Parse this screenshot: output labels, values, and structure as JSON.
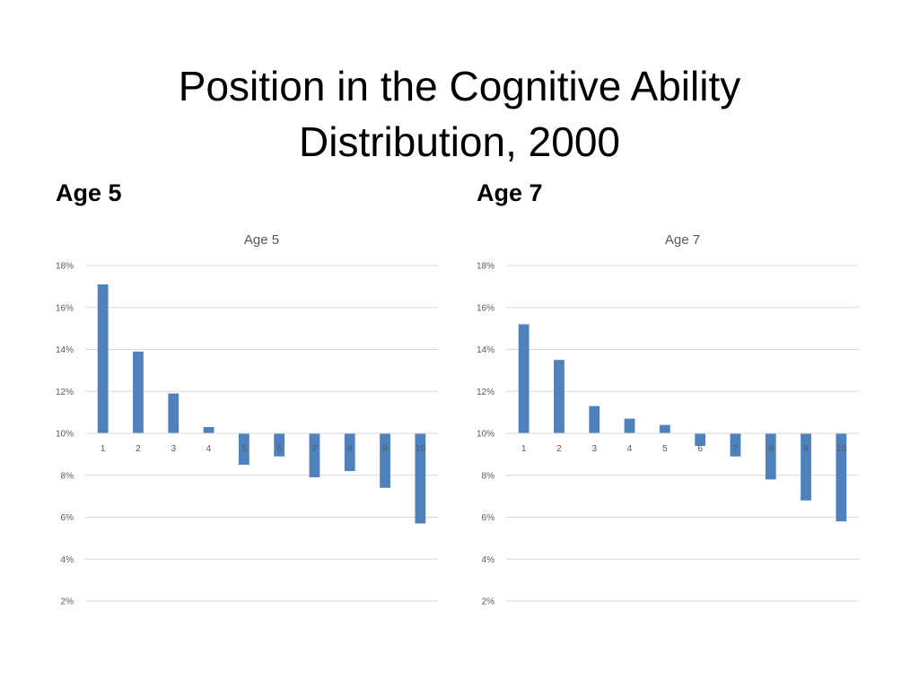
{
  "slide": {
    "title_line1": "Position in the Cognitive Ability",
    "title_line2": "Distribution, 2000",
    "left_heading": "Age 5",
    "right_heading": "Age 7"
  },
  "colors": {
    "bar": "#4f81bd"
  },
  "chart_data": [
    {
      "type": "bar",
      "title": "Age 5",
      "categories": [
        "1",
        "2",
        "3",
        "4",
        "5",
        "6",
        "7",
        "8",
        "9",
        "10"
      ],
      "values": [
        17.1,
        13.9,
        11.9,
        10.3,
        8.5,
        8.9,
        7.9,
        8.2,
        7.4,
        5.7
      ],
      "baseline": 10,
      "yticks": [
        "2%",
        "4%",
        "6%",
        "8%",
        "10%",
        "12%",
        "14%",
        "16%",
        "18%"
      ],
      "ylim": [
        2,
        18
      ],
      "unit": "%",
      "grid": true,
      "xlabel": "",
      "ylabel": ""
    },
    {
      "type": "bar",
      "title": "Age 7",
      "categories": [
        "1",
        "2",
        "3",
        "4",
        "5",
        "6",
        "7",
        "8",
        "9",
        "10"
      ],
      "values": [
        15.2,
        13.5,
        11.3,
        10.7,
        10.4,
        9.4,
        8.9,
        7.8,
        6.8,
        5.8
      ],
      "baseline": 10,
      "yticks": [
        "2%",
        "4%",
        "6%",
        "8%",
        "10%",
        "12%",
        "14%",
        "16%",
        "18%"
      ],
      "ylim": [
        2,
        18
      ],
      "unit": "%",
      "grid": true,
      "xlabel": "",
      "ylabel": ""
    }
  ]
}
